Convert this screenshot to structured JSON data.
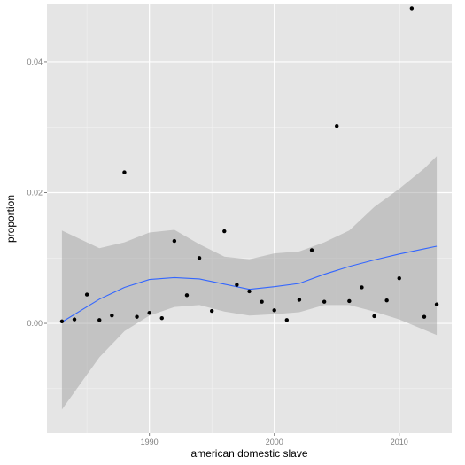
{
  "chart_data": {
    "type": "scatter",
    "xlabel": "american domestic slave",
    "ylabel": "proportion",
    "xlim": [
      1981.8,
      2014.2
    ],
    "ylim": [
      -0.0168,
      0.0488
    ],
    "x_ticks": [
      1990,
      2000,
      2010
    ],
    "x_tick_labels": [
      "1990",
      "2000",
      "2010"
    ],
    "y_ticks": [
      0.0,
      0.02,
      0.04
    ],
    "y_tick_labels": [
      "0.00",
      "0.02",
      "0.04"
    ],
    "grid": true,
    "colors": {
      "panel": "#e5e5e5",
      "grid_major": "#ffffff",
      "grid_minor": "#f2f2f2",
      "points": "#000000",
      "smooth_line": "#3366ff",
      "confidence_band": "#999999"
    },
    "points": [
      {
        "x": 1983,
        "y": 0.0003
      },
      {
        "x": 1984,
        "y": 0.0006
      },
      {
        "x": 1985,
        "y": 0.0044
      },
      {
        "x": 1986,
        "y": 0.0005
      },
      {
        "x": 1987,
        "y": 0.0012
      },
      {
        "x": 1988,
        "y": 0.0231
      },
      {
        "x": 1989,
        "y": 0.001
      },
      {
        "x": 1990,
        "y": 0.0016
      },
      {
        "x": 1991,
        "y": 0.0008
      },
      {
        "x": 1992,
        "y": 0.0126
      },
      {
        "x": 1993,
        "y": 0.0043
      },
      {
        "x": 1994,
        "y": 0.01
      },
      {
        "x": 1995,
        "y": 0.0019
      },
      {
        "x": 1996,
        "y": 0.0141
      },
      {
        "x": 1997,
        "y": 0.0059
      },
      {
        "x": 1998,
        "y": 0.0049
      },
      {
        "x": 1999,
        "y": 0.0033
      },
      {
        "x": 2000,
        "y": 0.002
      },
      {
        "x": 2001,
        "y": 0.0005
      },
      {
        "x": 2002,
        "y": 0.0036
      },
      {
        "x": 2003,
        "y": 0.0112
      },
      {
        "x": 2004,
        "y": 0.0033
      },
      {
        "x": 2005,
        "y": 0.0302
      },
      {
        "x": 2006,
        "y": 0.0034
      },
      {
        "x": 2007,
        "y": 0.0055
      },
      {
        "x": 2008,
        "y": 0.0011
      },
      {
        "x": 2009,
        "y": 0.0035
      },
      {
        "x": 2010,
        "y": 0.0069
      },
      {
        "x": 2011,
        "y": 0.0482
      },
      {
        "x": 2012,
        "y": 0.001
      },
      {
        "x": 2013,
        "y": 0.0029
      }
    ],
    "smooth_fit": {
      "x": [
        1983,
        1986,
        1988,
        1990,
        1992,
        1994,
        1996,
        1998,
        2000,
        2002,
        2004,
        2006,
        2008,
        2010,
        2012,
        2013
      ],
      "y": [
        0.0002,
        0.0037,
        0.0055,
        0.0067,
        0.007,
        0.0068,
        0.006,
        0.0052,
        0.0056,
        0.0061,
        0.0075,
        0.0087,
        0.0097,
        0.0106,
        0.0114,
        0.0118
      ],
      "lower": [
        -0.0132,
        -0.0052,
        -0.0012,
        0.0012,
        0.0025,
        0.0028,
        0.0018,
        0.0012,
        0.0014,
        0.0017,
        0.0028,
        0.0028,
        0.0018,
        0.0006,
        -0.001,
        -0.0018
      ],
      "upper": [
        0.0142,
        0.0115,
        0.0124,
        0.0139,
        0.0143,
        0.0121,
        0.0102,
        0.0098,
        0.0107,
        0.011,
        0.0124,
        0.0142,
        0.0178,
        0.0206,
        0.0237,
        0.0256
      ]
    }
  }
}
